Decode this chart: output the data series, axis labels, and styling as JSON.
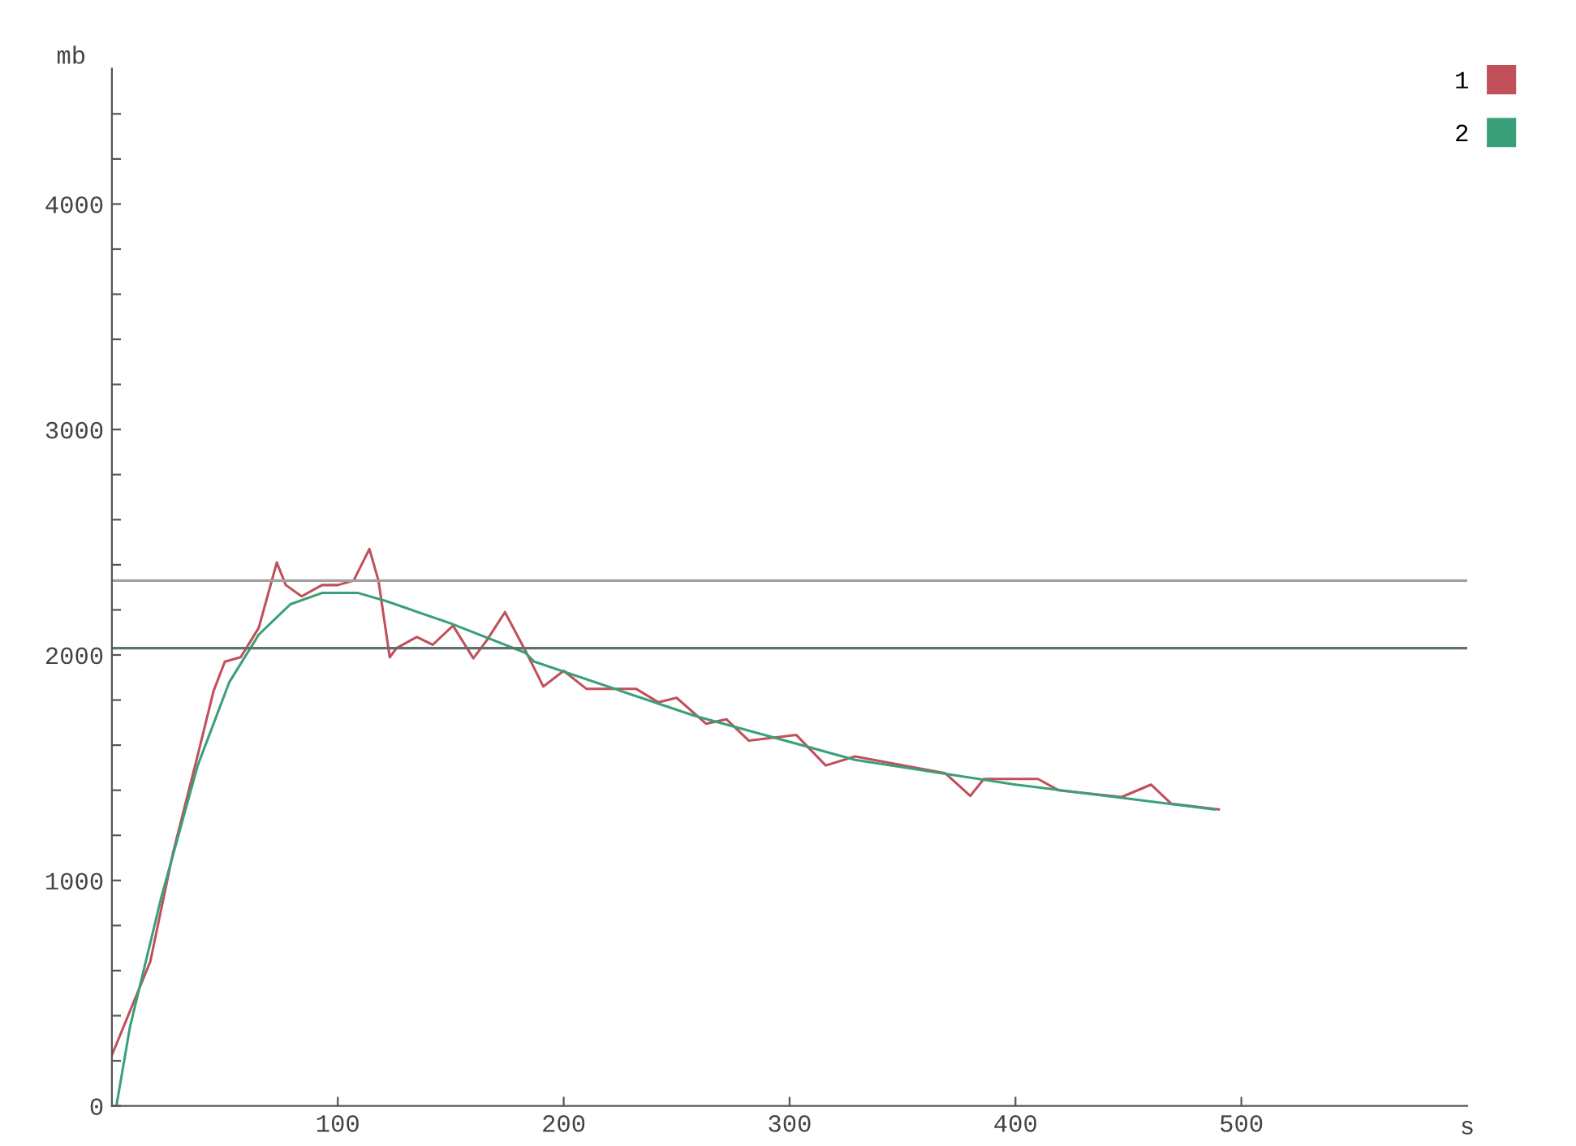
{
  "chart_data": {
    "type": "line",
    "xlabel": "s",
    "ylabel": "mb",
    "xlim": [
      0,
      600
    ],
    "xticks": [
      100,
      200,
      300,
      400,
      500
    ],
    "ylim": [
      0,
      4600
    ],
    "yticks": [
      0,
      {
        "value": 200,
        "label": null
      },
      {
        "value": 400,
        "label": null
      },
      {
        "value": 600,
        "label": null
      },
      {
        "value": 800,
        "label": null
      },
      1000,
      {
        "value": 1200,
        "label": null
      },
      {
        "value": 1400,
        "label": null
      },
      {
        "value": 1600,
        "label": null
      },
      {
        "value": 1800,
        "label": null
      },
      2000,
      {
        "value": 2200,
        "label": null
      },
      {
        "value": 2400,
        "label": null
      },
      {
        "value": 2600,
        "label": null
      },
      {
        "value": 2800,
        "label": null
      },
      3000,
      {
        "value": 3200,
        "label": null
      },
      {
        "value": 3400,
        "label": null
      },
      {
        "value": 3600,
        "label": null
      },
      {
        "value": 3800,
        "label": null
      },
      4000,
      {
        "value": 4200,
        "label": null
      },
      {
        "value": 4400,
        "label": null
      }
    ],
    "grid": false,
    "legend": "top right",
    "marker": "none",
    "line_style": "solid",
    "series": [
      {
        "name": "1",
        "color": "#c0505a",
        "x": [
          0,
          17,
          27,
          38,
          45,
          50,
          57,
          65,
          73,
          77,
          84,
          93,
          100,
          107,
          114,
          118,
          123,
          126,
          135,
          142,
          151,
          160,
          166,
          174,
          183,
          191,
          200,
          210,
          232,
          242,
          250,
          263,
          272,
          282,
          303,
          316,
          329,
          369,
          380,
          386,
          410,
          419,
          447,
          460,
          469,
          490
        ],
        "values": [
          225,
          640,
          1120,
          1556,
          1840,
          1970,
          1990,
          2120,
          2410,
          2310,
          2260,
          2310,
          2310,
          2330,
          2470,
          2330,
          1990,
          2030,
          2080,
          2045,
          2130,
          1985,
          2065,
          2190,
          2020,
          1860,
          1930,
          1850,
          1850,
          1790,
          1810,
          1695,
          1715,
          1620,
          1645,
          1510,
          1550,
          1475,
          1375,
          1450,
          1450,
          1400,
          1370,
          1425,
          1340,
          1315
        ]
      },
      {
        "name": "2",
        "color": "#3aa07a",
        "x": [
          2,
          8,
          22,
          38,
          52,
          65,
          79,
          93,
          109,
          121,
          150,
          183,
          187,
          258,
          329,
          400,
          488
        ],
        "values": [
          0,
          350,
          930,
          1510,
          1880,
          2090,
          2225,
          2275,
          2275,
          2240,
          2140,
          2010,
          1970,
          1730,
          1535,
          1425,
          1315
        ]
      }
    ],
    "ref_lines": [
      {
        "axis": "y",
        "value": 2330,
        "color": "#a0a0a0",
        "line_style": "solid"
      },
      {
        "axis": "y",
        "value": 2030,
        "color": "#607070",
        "line_style": "solid"
      }
    ]
  }
}
